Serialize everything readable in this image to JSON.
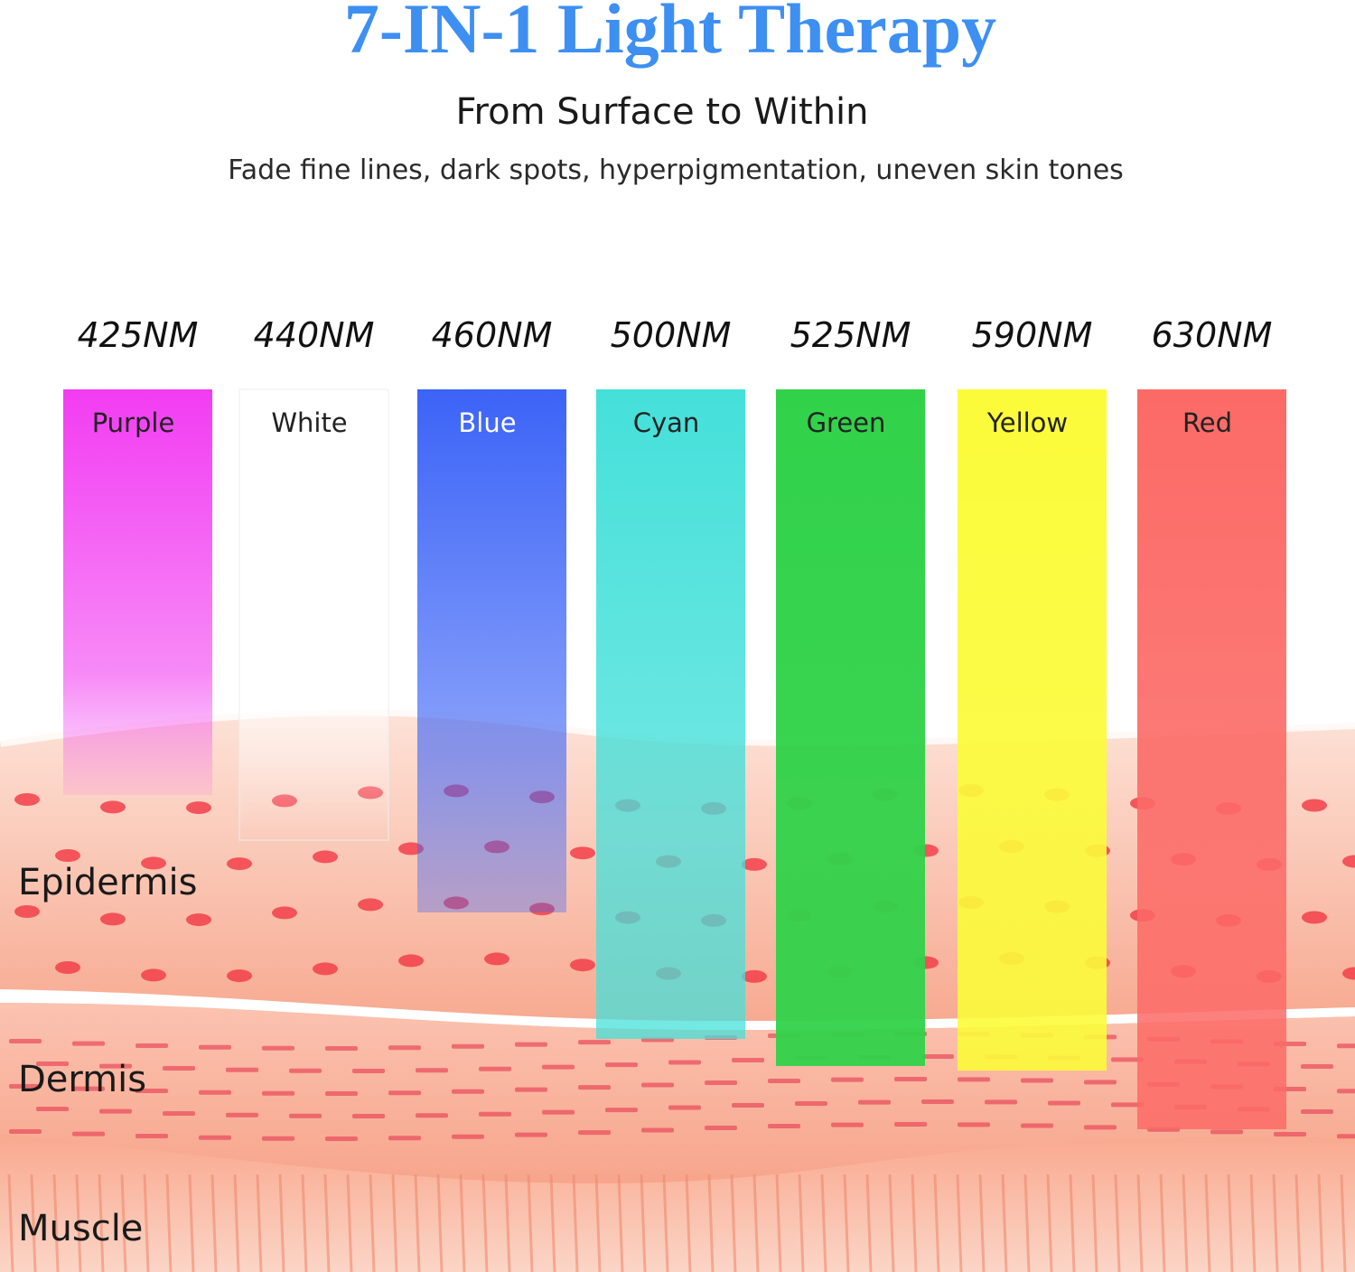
{
  "header": {
    "title": "7-IN-1 Light Therapy",
    "subtitle": "From Surface to Within",
    "description": "Fade fine lines, dark spots, hyperpigmentation, uneven skin tones"
  },
  "bands": [
    {
      "wavelength": "425NM",
      "name": "Purple",
      "color": "#f23cf2"
    },
    {
      "wavelength": "440NM",
      "name": "White",
      "color": "#ffffff"
    },
    {
      "wavelength": "460NM",
      "name": "Blue",
      "color": "#3b63f7"
    },
    {
      "wavelength": "500NM",
      "name": "Cyan",
      "color": "#45e0da"
    },
    {
      "wavelength": "525NM",
      "name": "Green",
      "color": "#31d24a"
    },
    {
      "wavelength": "590NM",
      "name": "Yellow",
      "color": "#fbfb3a"
    },
    {
      "wavelength": "630NM",
      "name": "Red",
      "color": "#fc6a66"
    }
  ],
  "layers": [
    "Epidermis",
    "Dermis",
    "Muscle"
  ]
}
